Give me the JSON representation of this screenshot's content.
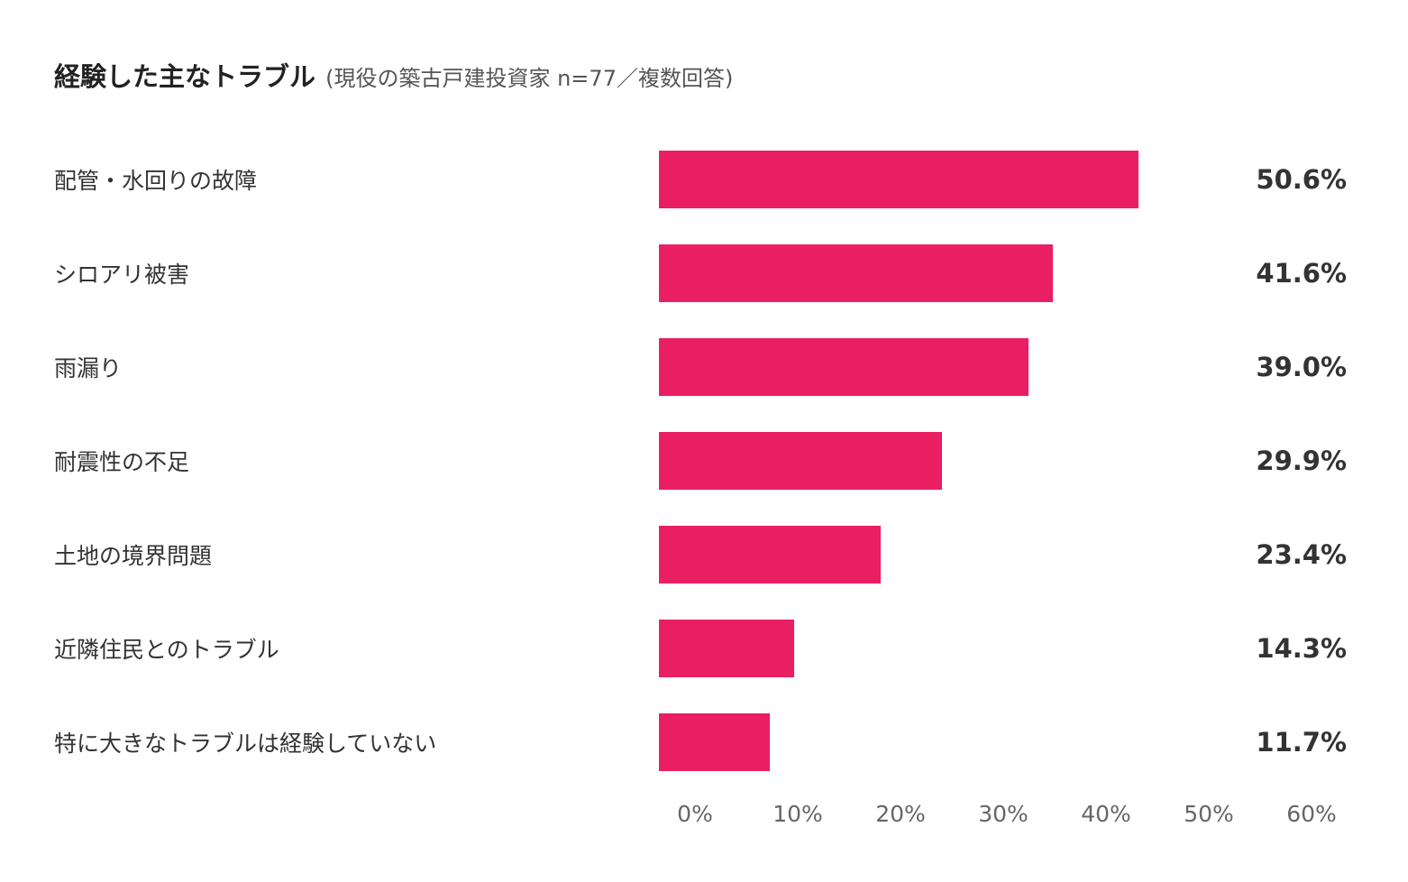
{
  "chart_data": {
    "type": "bar",
    "orientation": "horizontal",
    "title": "経験した主なトラブル",
    "subtitle": "(現役の築古戸建投資家 n=77／複数回答)",
    "categories": [
      "配管・水回りの故障",
      "シロアリ被害",
      "雨漏り",
      "耐震性の不足",
      "土地の境界問題",
      "近隣住民とのトラブル",
      "特に大きなトラブルは経験していない"
    ],
    "values": [
      50.6,
      41.6,
      39.0,
      29.9,
      23.4,
      14.3,
      11.7
    ],
    "value_labels": [
      "50.6%",
      "41.6%",
      "39.0%",
      "29.9%",
      "23.4%",
      "14.3%",
      "11.7%"
    ],
    "xlim": [
      0,
      60
    ],
    "x_tick_labels": [
      "0%",
      "10%",
      "20%",
      "30%",
      "40%",
      "50%",
      "60%"
    ],
    "grid": false,
    "bar_color": "#EA1F63"
  }
}
